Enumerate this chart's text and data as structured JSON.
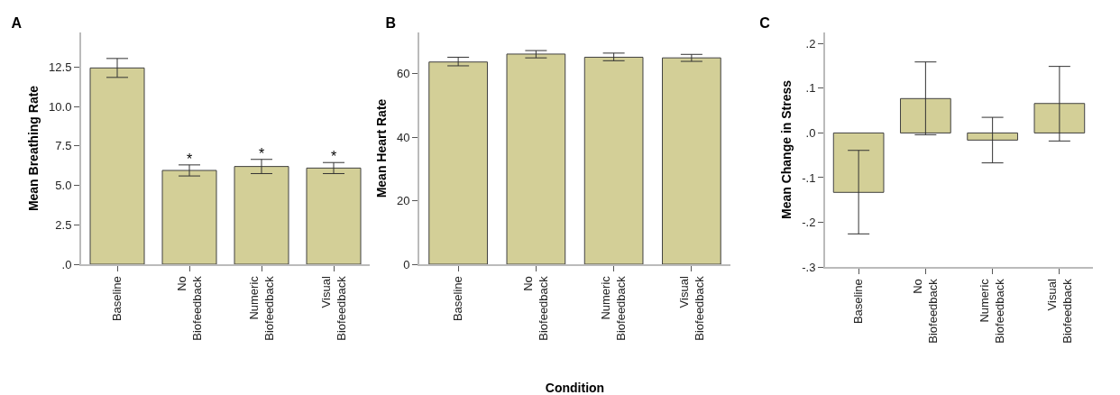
{
  "chart_data": [
    {
      "type": "bar",
      "title": "A",
      "ylabel": "Mean Breathing Rate",
      "categories": [
        "Baseline",
        "No Biofeedback",
        "Numeric Biofeedback",
        "Visual Biofeedback"
      ],
      "color": "#d3cf97",
      "values": [
        12.45,
        5.95,
        6.2,
        6.1
      ],
      "errors": [
        [
          11.85,
          13.05
        ],
        [
          5.6,
          6.3
        ],
        [
          5.75,
          6.65
        ],
        [
          5.75,
          6.45
        ]
      ],
      "ylim": [
        0,
        14.7
      ],
      "yticks": [
        {
          "value": 0,
          "label": ".0"
        },
        2.5,
        {
          "value": 5,
          "label": "5.0"
        },
        7.5,
        {
          "value": 10,
          "label": "10.0"
        },
        12.5
      ],
      "grid": false,
      "annotations": [
        {
          "text": "*",
          "x": "No Biofeedback",
          "y": 6.3
        },
        {
          "text": "*",
          "x": "Numeric Biofeedback",
          "y": 6.65
        },
        {
          "text": "*",
          "x": "Visual Biofeedback",
          "y": 6.45
        }
      ]
    },
    {
      "type": "bar",
      "title": "B",
      "ylabel": "Mean Heart Rate",
      "xlabel": "Condition",
      "categories": [
        "Baseline",
        "No Biofeedback",
        "Numeric Biofeedback",
        "Visual Biofeedback"
      ],
      "color": "#d3cf97",
      "values": [
        63.7,
        66.2,
        65.2,
        65
      ],
      "errors": [
        [
          62.5,
          65.2
        ],
        [
          65,
          67.3
        ],
        [
          64.1,
          66.5
        ],
        [
          63.9,
          66.1
        ]
      ],
      "ylim": [
        0,
        73
      ],
      "yticks": [
        0,
        20,
        40,
        60
      ],
      "grid": false
    },
    {
      "type": "bar",
      "title": "C",
      "ylabel": "Mean Change in Stress",
      "categories": [
        "Baseline",
        "No Biofeedback",
        "Numeric Biofeedback",
        "Visual Biofeedback"
      ],
      "color": "#d3cf97",
      "values": [
        -0.133,
        0.077,
        -0.016,
        0.066
      ],
      "errors": [
        [
          -0.226,
          -0.039
        ],
        [
          -0.004,
          0.159
        ],
        [
          -0.067,
          0.035
        ],
        [
          -0.018,
          0.149
        ]
      ],
      "ylim": [
        -0.3,
        0.225
      ],
      "yticks": [
        {
          "value": -0.3,
          "label": "-.3"
        },
        {
          "value": -0.2,
          "label": "-.2"
        },
        {
          "value": -0.1,
          "label": "-.1"
        },
        {
          "value": 0,
          "label": ".0"
        },
        {
          "value": 0.1,
          "label": ".1"
        },
        {
          "value": 0.2,
          "label": ".2"
        }
      ],
      "grid": false
    }
  ]
}
